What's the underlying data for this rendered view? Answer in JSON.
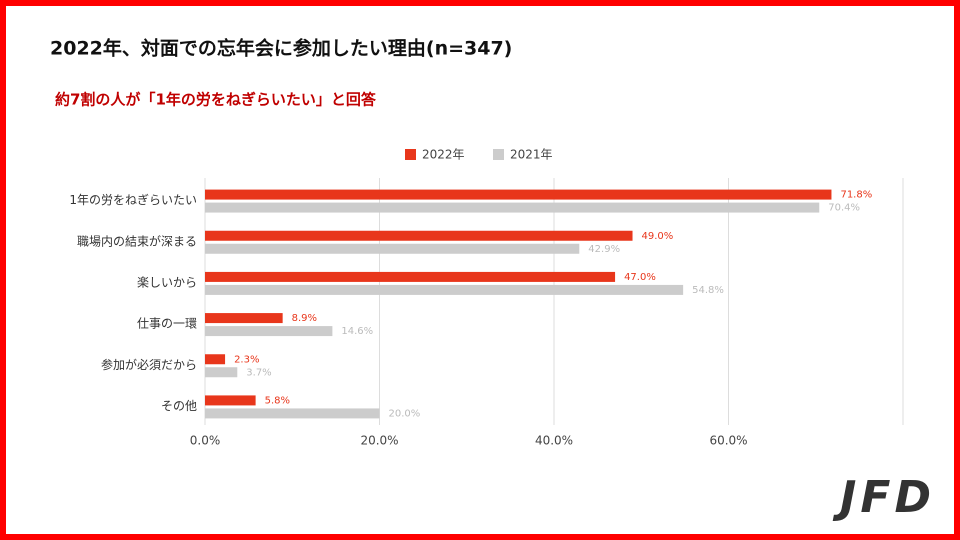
{
  "chart_data": {
    "type": "bar",
    "orientation": "horizontal",
    "title": "2022年、対面での忘年会に参加したい理由(n=347)",
    "subtitle": "約7割の人が「1年の労をねぎらいたい」と回答",
    "categories": [
      "1年の労をねぎらいたい",
      "職場内の結束が深まる",
      "楽しいから",
      "仕事の一環",
      "参加が必須だから",
      "その他"
    ],
    "series": [
      {
        "name": "2022年",
        "color": "#e8361b",
        "values": [
          71.8,
          49.0,
          47.0,
          8.9,
          2.3,
          5.8
        ],
        "value_labels": [
          "71.8%",
          "49.0%",
          "47.0%",
          "8.9%",
          "2.3%",
          "5.8%"
        ]
      },
      {
        "name": "2021年",
        "color": "#cccccc",
        "values": [
          70.4,
          42.9,
          54.8,
          14.6,
          3.7,
          20.0
        ],
        "value_labels": [
          "70.4%",
          "42.9%",
          "54.8%",
          "14.6%",
          "3.7%",
          "20.0%"
        ]
      }
    ],
    "xlim": [
      0,
      80
    ],
    "xticks": [
      {
        "value": 0,
        "label": "0.0%"
      },
      {
        "value": 20,
        "label": "20.0%"
      },
      {
        "value": 40,
        "label": "40.0%"
      },
      {
        "value": 60,
        "label": "60.0%"
      }
    ],
    "grid": true,
    "legend": "top"
  },
  "logo": "JFD"
}
